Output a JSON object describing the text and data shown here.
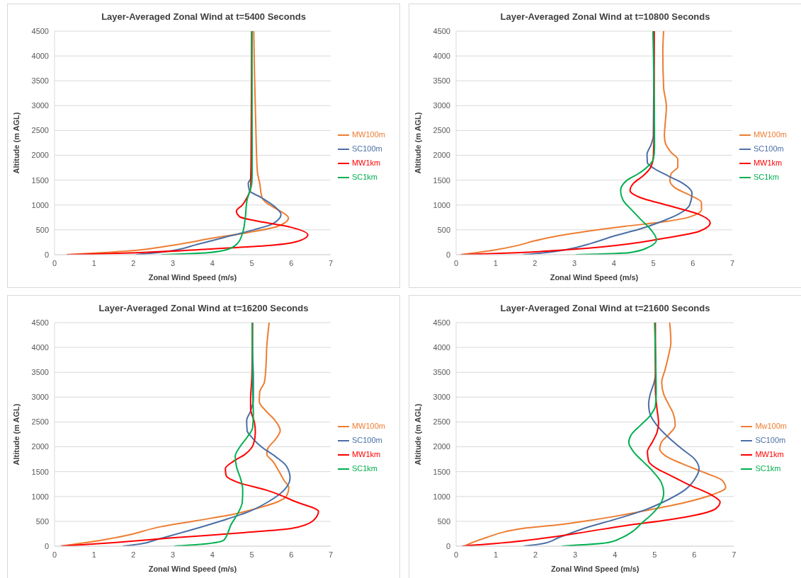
{
  "chart_data": [
    {
      "type": "line",
      "title": "Layer-Averaged Zonal Wind at t=5400 Seconds",
      "xlabel": "Zonal Wind Speed (m/s)",
      "ylabel": "Altitude (m AGL)",
      "xlim": [
        0,
        7
      ],
      "xticks": [
        0,
        1,
        2,
        3,
        4,
        5,
        6,
        7
      ],
      "ylim": [
        0,
        4500
      ],
      "yticks": [
        0,
        500,
        1000,
        1500,
        2000,
        2500,
        3000,
        3500,
        4000,
        4500
      ],
      "grid": "y",
      "legend": "right",
      "series": [
        {
          "name": "MW100m",
          "color": "#ed7d31",
          "x": [
            0.31,
            2.09,
            2.92,
            3.99,
            4.93,
            5.65,
            5.93,
            5.65,
            5.36,
            5.26,
            5.2,
            5.14,
            5.1,
            5.07,
            5.05
          ],
          "values": [
            0,
            90,
            180,
            330,
            450,
            570,
            740,
            910,
            1050,
            1150,
            1440,
            1680,
            2640,
            3610,
            4500
          ]
        },
        {
          "name": "SC100m",
          "color": "#4a6fa5",
          "x": [
            2.06,
            2.8,
            3.63,
            4.46,
            5.05,
            5.53,
            5.74,
            5.59,
            5.24,
            4.94,
            4.91,
            4.97,
            5.0,
            5.0
          ],
          "values": [
            0,
            60,
            210,
            380,
            500,
            620,
            810,
            960,
            1150,
            1290,
            1440,
            1530,
            2160,
            4500
          ]
        },
        {
          "name": "MW1km",
          "color": "#ff0000",
          "x": [
            0.31,
            2.09,
            3.87,
            5.36,
            6.12,
            6.42,
            6.0,
            5.05,
            4.7,
            4.61,
            4.76,
            4.88,
            4.97,
            4.98,
            5.0
          ],
          "values": [
            0,
            40,
            110,
            180,
            260,
            400,
            550,
            690,
            760,
            880,
            1000,
            1150,
            1340,
            1680,
            4500
          ]
        },
        {
          "name": "SC1km",
          "color": "#00b050",
          "x": [
            2.71,
            3.87,
            4.4,
            4.64,
            4.76,
            4.83,
            4.88,
            5.0,
            5.01,
            5.0
          ],
          "values": [
            0,
            40,
            110,
            230,
            420,
            710,
            1100,
            1440,
            1680,
            4500
          ]
        }
      ]
    },
    {
      "type": "line",
      "title": "Layer-Averaged Zonal Wind at t=10800 Seconds",
      "xlabel": "Zonal Wind Speed (m/s)",
      "ylabel": "Altitude (m AGL)",
      "xlim": [
        0,
        7
      ],
      "xticks": [
        0,
        1,
        2,
        3,
        4,
        5,
        6,
        7
      ],
      "ylim": [
        0,
        4500
      ],
      "yticks": [
        0,
        500,
        1000,
        1500,
        2000,
        2500,
        3000,
        3500,
        4000,
        4500
      ],
      "grid": "y",
      "legend": "right",
      "series": [
        {
          "name": "MW100m",
          "color": "#ed7d31",
          "x": [
            0.12,
            0.94,
            1.53,
            2.0,
            2.6,
            3.31,
            4.26,
            5.33,
            5.92,
            6.22,
            6.22,
            5.92,
            5.56,
            5.42,
            5.45,
            5.62,
            5.62,
            5.45,
            5.3,
            5.28,
            5.3,
            5.33,
            5.26,
            5.24,
            5.26
          ],
          "values": [
            0,
            90,
            180,
            280,
            380,
            470,
            570,
            670,
            760,
            910,
            1050,
            1200,
            1340,
            1490,
            1630,
            1770,
            1920,
            2060,
            2260,
            2400,
            2640,
            2980,
            3370,
            4090,
            4500
          ]
        },
        {
          "name": "SC100m",
          "color": "#4a6fa5",
          "x": [
            1.7,
            2.24,
            2.84,
            3.43,
            4.02,
            4.67,
            5.21,
            5.62,
            5.92,
            5.98,
            5.74,
            5.39,
            5.03,
            4.85,
            4.84,
            4.94,
            5.0,
            5.02
          ],
          "values": [
            0,
            40,
            110,
            230,
            380,
            520,
            670,
            810,
            1000,
            1240,
            1440,
            1580,
            1730,
            1850,
            2020,
            2210,
            2400,
            4500
          ]
        },
        {
          "name": "MW1km",
          "color": "#ff0000",
          "x": [
            0.12,
            1.53,
            3.01,
            4.5,
            5.27,
            6.16,
            6.44,
            6.16,
            5.33,
            4.67,
            4.41,
            4.5,
            4.73,
            4.94,
            5.0,
            5.02,
            5.02
          ],
          "values": [
            0,
            40,
            110,
            230,
            330,
            470,
            640,
            810,
            1000,
            1150,
            1290,
            1440,
            1580,
            1770,
            1970,
            2640,
            4500
          ]
        },
        {
          "name": "SC1km",
          "color": "#00b050",
          "x": [
            3.03,
            4.38,
            4.85,
            5.08,
            4.97,
            4.68,
            4.44,
            4.23,
            4.17,
            4.32,
            4.62,
            4.85,
            5.0,
            5.03,
            4.99
          ],
          "values": [
            0,
            40,
            140,
            300,
            470,
            710,
            910,
            1100,
            1290,
            1490,
            1630,
            1770,
            1920,
            2160,
            4500
          ]
        }
      ]
    },
    {
      "type": "line",
      "title": "Layer-Averaged Zonal Wind at t=16200 Seconds",
      "xlabel": "Zonal Wind Speed (m/s)",
      "ylabel": "Altitude (m AGL)",
      "xlim": [
        0,
        7
      ],
      "xticks": [
        0,
        1,
        2,
        3,
        4,
        5,
        6,
        7
      ],
      "ylim": [
        0,
        4500
      ],
      "yticks": [
        0,
        500,
        1000,
        1500,
        2000,
        2500,
        3000,
        3500,
        4000,
        4500
      ],
      "grid": "y",
      "legend": "right",
      "series": [
        {
          "name": "MW100m",
          "color": "#ed7d31",
          "x": [
            0.16,
            1.2,
            1.85,
            2.68,
            3.57,
            4.46,
            5.17,
            5.65,
            5.88,
            5.94,
            5.82,
            5.68,
            5.53,
            5.38,
            5.41,
            5.59,
            5.72,
            5.59,
            5.36,
            5.19,
            5.2,
            5.32,
            5.36,
            5.38,
            5.44
          ],
          "values": [
            0,
            120,
            220,
            390,
            510,
            630,
            770,
            890,
            1010,
            1180,
            1320,
            1520,
            1710,
            1850,
            1970,
            2140,
            2330,
            2530,
            2720,
            2910,
            3100,
            3300,
            3630,
            4020,
            4500
          ]
        },
        {
          "name": "SC100m",
          "color": "#4a6fa5",
          "x": [
            1.73,
            2.21,
            2.62,
            3.39,
            4.23,
            4.94,
            5.41,
            5.82,
            5.97,
            5.88,
            5.59,
            5.24,
            5.0,
            4.88,
            4.87,
            4.97,
            5.04,
            5.04,
            5.02,
            5.01
          ],
          "values": [
            0,
            50,
            140,
            310,
            510,
            700,
            890,
            1130,
            1370,
            1610,
            1810,
            2000,
            2190,
            2330,
            2530,
            2720,
            2960,
            3390,
            3870,
            4500
          ]
        },
        {
          "name": "MW1km",
          "color": "#ff0000",
          "x": [
            0.16,
            1.5,
            3.04,
            4.77,
            6.02,
            6.55,
            6.69,
            6.13,
            5.36,
            4.66,
            4.35,
            4.33,
            4.54,
            4.83,
            5.04,
            5.09,
            5.07,
            4.97,
            4.97,
            5.0,
            5.02
          ],
          "values": [
            0,
            70,
            170,
            270,
            360,
            510,
            700,
            890,
            1130,
            1280,
            1420,
            1560,
            1710,
            1850,
            2050,
            2290,
            2480,
            2770,
            2960,
            3390,
            4500
          ]
        },
        {
          "name": "SC1km",
          "color": "#00b050",
          "x": [
            3.03,
            3.88,
            4.29,
            4.38,
            4.46,
            4.64,
            4.76,
            4.77,
            4.73,
            4.61,
            4.58,
            4.7,
            4.88,
            5.02,
            5.04,
            5.02,
            5.01
          ],
          "values": [
            0,
            50,
            120,
            240,
            410,
            650,
            890,
            1130,
            1320,
            1610,
            1810,
            2000,
            2190,
            2380,
            2670,
            3150,
            4500
          ]
        }
      ]
    },
    {
      "type": "line",
      "title": "Layer-Averaged Zonal Wind at t=21600 Seconds",
      "xlabel": "Zonal Wind Speed (m/s)",
      "ylabel": "Altitude (m AGL)",
      "xlim": [
        0,
        7
      ],
      "xticks": [
        0,
        1,
        2,
        3,
        4,
        5,
        6,
        7
      ],
      "ylim": [
        0,
        4500
      ],
      "yticks": [
        0,
        500,
        1000,
        1500,
        2000,
        2500,
        3000,
        3500,
        4000,
        4500
      ],
      "grid": "y",
      "legend": "right",
      "series": [
        {
          "name": "Mw100m",
          "color": "#ed7d31",
          "x": [
            0.22,
            0.34,
            0.75,
            1.23,
            1.7,
            2.58,
            3.29,
            4.0,
            5.0,
            5.82,
            6.47,
            6.79,
            6.71,
            6.29,
            5.69,
            5.29,
            5.13,
            5.17,
            5.35,
            5.52,
            5.47,
            5.35,
            5.23,
            5.18,
            5.26,
            5.35,
            5.41,
            5.38
          ],
          "values": [
            0,
            50,
            170,
            290,
            360,
            430,
            510,
            600,
            750,
            890,
            1040,
            1180,
            1320,
            1470,
            1660,
            1810,
            1950,
            2090,
            2240,
            2430,
            2670,
            2860,
            3060,
            3300,
            3540,
            3830,
            4110,
            4500
          ]
        },
        {
          "name": "SC100m",
          "color": "#4a6fa5",
          "x": [
            1.7,
            2.17,
            2.58,
            3.23,
            4.05,
            4.82,
            5.35,
            5.76,
            6.03,
            6.12,
            6.0,
            5.7,
            5.35,
            5.06,
            4.88,
            4.85,
            4.89,
            4.99,
            5.03,
            5.02,
            5.01
          ],
          "values": [
            0,
            50,
            170,
            360,
            550,
            750,
            940,
            1130,
            1370,
            1560,
            1760,
            1950,
            2190,
            2430,
            2670,
            2860,
            3060,
            3300,
            3490,
            3870,
            4500
          ]
        },
        {
          "name": "MW1km",
          "color": "#ff0000",
          "x": [
            0.15,
            1.23,
            2.29,
            3.29,
            4.23,
            5.35,
            6.06,
            6.53,
            6.65,
            6.41,
            5.88,
            5.41,
            5.06,
            4.85,
            4.82,
            4.94,
            5.06,
            5.1,
            5.06,
            5.02,
            5.02
          ],
          "values": [
            0,
            70,
            170,
            290,
            410,
            530,
            630,
            750,
            890,
            1040,
            1230,
            1420,
            1560,
            1710,
            1900,
            2090,
            2290,
            2480,
            2770,
            3150,
            4500
          ]
        },
        {
          "name": "SC1km",
          "color": "#00b050",
          "x": [
            2.66,
            3.82,
            4.17,
            4.47,
            4.67,
            4.94,
            5.14,
            5.23,
            5.17,
            4.94,
            4.7,
            4.47,
            4.35,
            4.41,
            4.64,
            4.88,
            5.02,
            5.04,
            5.03,
            5.0
          ],
          "values": [
            0,
            70,
            170,
            310,
            460,
            650,
            840,
            1080,
            1280,
            1520,
            1710,
            1900,
            2090,
            2240,
            2430,
            2620,
            2820,
            3060,
            3630,
            4500
          ]
        }
      ]
    }
  ]
}
